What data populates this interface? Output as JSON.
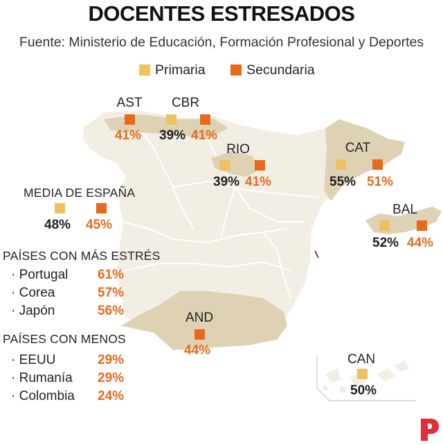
{
  "title": "DOCENTES ESTRESADOS",
  "subtitle": "Fuente: Ministerio de Educación, Formación Profesional y Deportes",
  "colors": {
    "primaria": "#ecc160",
    "secundaria": "#e8691c",
    "highlight": "#dfd2b4",
    "land": "#f3eee4",
    "border": "#ffffff"
  },
  "legend": [
    {
      "label": "Primaria",
      "color": "#ecc160"
    },
    {
      "label": "Secundaria",
      "color": "#e8691c"
    }
  ],
  "regions": {
    "ast": {
      "code": "AST",
      "secundaria": "41%"
    },
    "cbr": {
      "code": "CBR",
      "primaria": "39%",
      "secundaria": "41%"
    },
    "rio": {
      "code": "RIO",
      "primaria": "39%",
      "secundaria": "41%"
    },
    "cat": {
      "code": "CAT",
      "primaria": "55%",
      "secundaria": "51%"
    },
    "bal": {
      "code": "BAL",
      "primaria": "52%",
      "secundaria": "44%"
    },
    "and": {
      "code": "AND",
      "secundaria": "44%"
    },
    "can": {
      "code": "CAN",
      "primaria": "50%"
    }
  },
  "media": {
    "title": "MEDIA DE ESPAÑA",
    "primaria": "48%",
    "secundaria": "45%"
  },
  "mas_estres": {
    "title": "PAÍSES CON MÁS ESTRÉS",
    "items": [
      {
        "label": "· Portugal",
        "value": "61%"
      },
      {
        "label": "· Corea",
        "value": "57%"
      },
      {
        "label": "· Japón",
        "value": "56%"
      }
    ]
  },
  "menos_estres": {
    "title": "PAÍSES CON MENOS",
    "items": [
      {
        "label": "· EEUU",
        "value": "29%"
      },
      {
        "label": "· Rumanía",
        "value": "29%"
      },
      {
        "label": "· Colombia",
        "value": "24%"
      }
    ]
  },
  "logo_icon": "publisher-logo-icon"
}
